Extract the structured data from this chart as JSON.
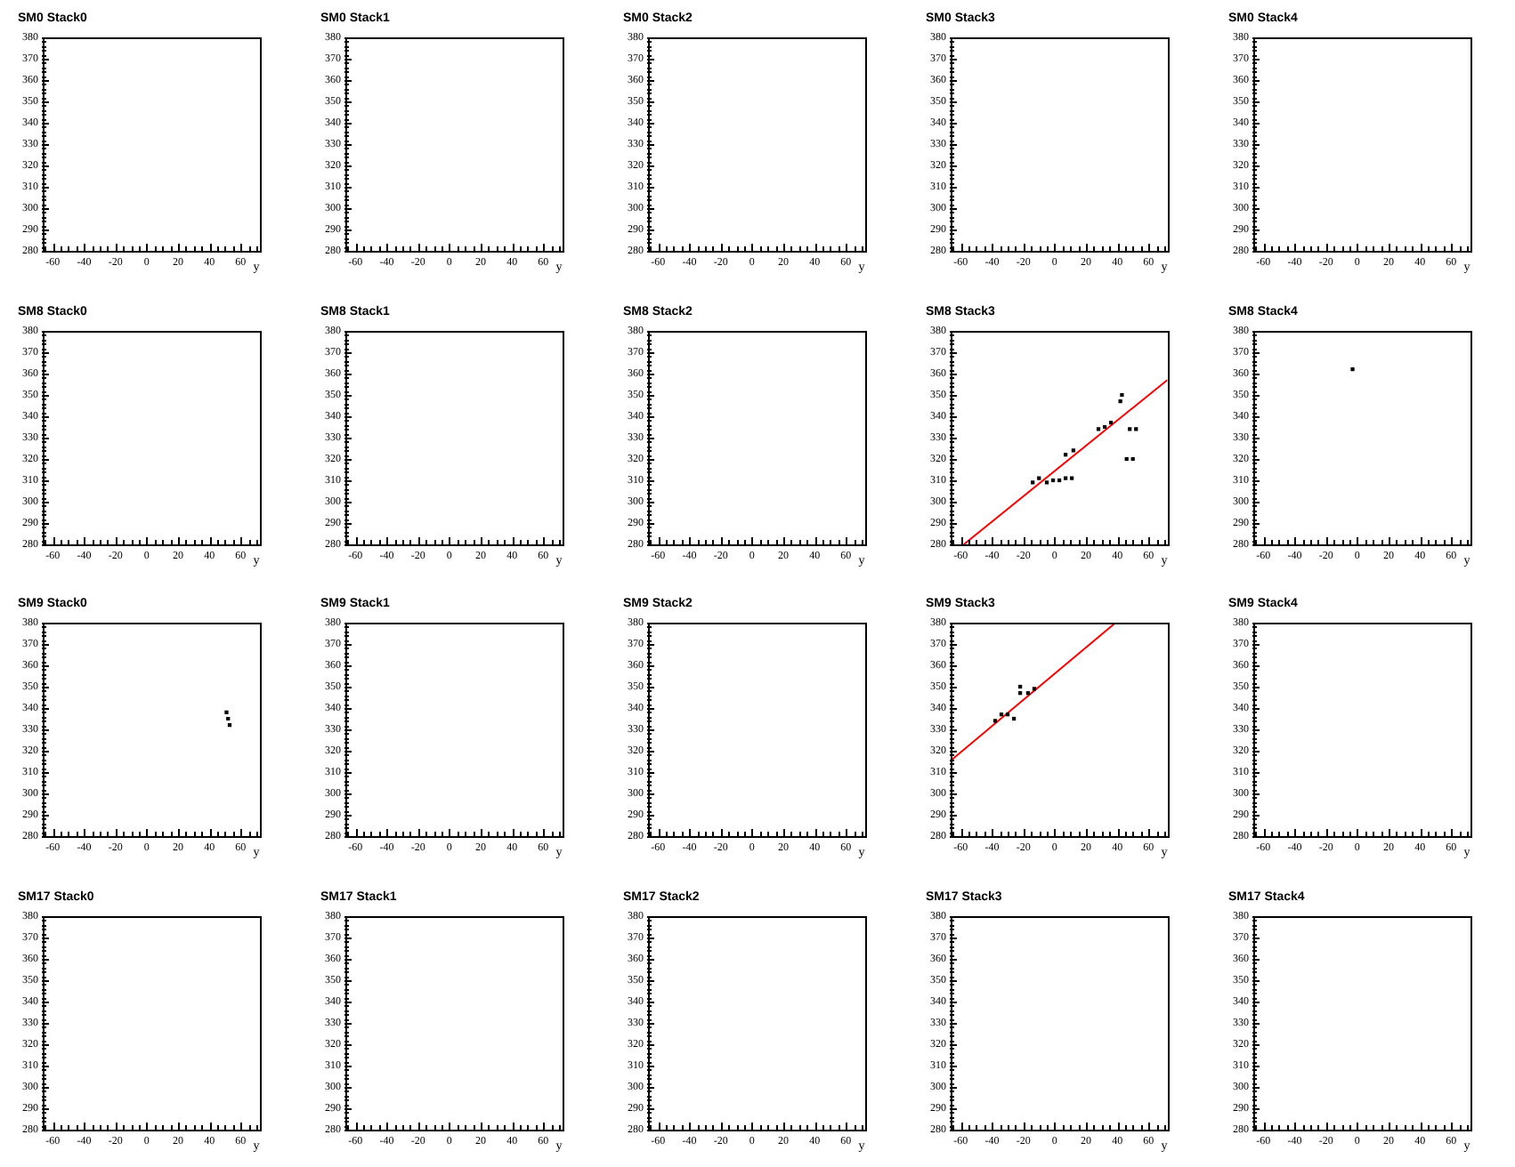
{
  "chart_data": [
    {
      "type": "scatter",
      "title": "SM0 Stack0",
      "xlabel": "y",
      "xlim": [
        -67,
        72
      ],
      "ylim": [
        280,
        380
      ],
      "xticks": [
        -60,
        -40,
        -20,
        0,
        20,
        40,
        60
      ],
      "yticks": [
        280,
        290,
        300,
        310,
        320,
        330,
        340,
        350,
        360,
        370,
        380
      ]
    },
    {
      "type": "scatter",
      "title": "SM0 Stack1",
      "xlabel": "y",
      "xlim": [
        -67,
        72
      ],
      "ylim": [
        280,
        380
      ],
      "xticks": [
        -60,
        -40,
        -20,
        0,
        20,
        40,
        60
      ],
      "yticks": [
        280,
        290,
        300,
        310,
        320,
        330,
        340,
        350,
        360,
        370,
        380
      ]
    },
    {
      "type": "scatter",
      "title": "SM0 Stack2",
      "xlabel": "y",
      "xlim": [
        -67,
        72
      ],
      "ylim": [
        280,
        380
      ],
      "xticks": [
        -60,
        -40,
        -20,
        0,
        20,
        40,
        60
      ],
      "yticks": [
        280,
        290,
        300,
        310,
        320,
        330,
        340,
        350,
        360,
        370,
        380
      ]
    },
    {
      "type": "scatter",
      "title": "SM0 Stack3",
      "xlabel": "y",
      "xlim": [
        -67,
        72
      ],
      "ylim": [
        280,
        380
      ],
      "xticks": [
        -60,
        -40,
        -20,
        0,
        20,
        40,
        60
      ],
      "yticks": [
        280,
        290,
        300,
        310,
        320,
        330,
        340,
        350,
        360,
        370,
        380
      ]
    },
    {
      "type": "scatter",
      "title": "SM0 Stack4",
      "xlabel": "y",
      "xlim": [
        -67,
        72
      ],
      "ylim": [
        280,
        380
      ],
      "xticks": [
        -60,
        -40,
        -20,
        0,
        20,
        40,
        60
      ],
      "yticks": [
        280,
        290,
        300,
        310,
        320,
        330,
        340,
        350,
        360,
        370,
        380
      ]
    },
    {
      "type": "scatter",
      "title": "SM8 Stack0",
      "xlabel": "y",
      "xlim": [
        -67,
        72
      ],
      "ylim": [
        280,
        380
      ],
      "xticks": [
        -60,
        -40,
        -20,
        0,
        20,
        40,
        60
      ],
      "yticks": [
        280,
        290,
        300,
        310,
        320,
        330,
        340,
        350,
        360,
        370,
        380
      ]
    },
    {
      "type": "scatter",
      "title": "SM8 Stack1",
      "xlabel": "y",
      "xlim": [
        -67,
        72
      ],
      "ylim": [
        280,
        380
      ],
      "xticks": [
        -60,
        -40,
        -20,
        0,
        20,
        40,
        60
      ],
      "yticks": [
        280,
        290,
        300,
        310,
        320,
        330,
        340,
        350,
        360,
        370,
        380
      ]
    },
    {
      "type": "scatter",
      "title": "SM8 Stack2",
      "xlabel": "y",
      "xlim": [
        -67,
        72
      ],
      "ylim": [
        280,
        380
      ],
      "xticks": [
        -60,
        -40,
        -20,
        0,
        20,
        40,
        60
      ],
      "yticks": [
        280,
        290,
        300,
        310,
        320,
        330,
        340,
        350,
        360,
        370,
        380
      ]
    },
    {
      "type": "scatter",
      "title": "SM8 Stack3",
      "xlabel": "y",
      "xlim": [
        -67,
        72
      ],
      "ylim": [
        280,
        380
      ],
      "xticks": [
        -60,
        -40,
        -20,
        0,
        20,
        40,
        60
      ],
      "yticks": [
        280,
        290,
        300,
        310,
        320,
        330,
        340,
        350,
        360,
        370,
        380
      ],
      "marker": "square",
      "series": [
        {
          "color": "#000000",
          "x": [
            -14,
            -10,
            -5,
            -1,
            3,
            7,
            11,
            7,
            12,
            28,
            32,
            36,
            42,
            43,
            48,
            52,
            46,
            50
          ],
          "values": [
            309,
            311,
            309,
            310,
            310,
            311,
            311,
            322,
            324,
            334,
            335,
            337,
            347,
            350,
            334,
            334,
            320,
            320
          ]
        },
        {
          "type": "line",
          "marker": "none",
          "color": "#ff0000",
          "x": [
            -58,
            72
          ],
          "values": [
            280,
            357
          ]
        }
      ]
    },
    {
      "type": "scatter",
      "title": "SM8 Stack4",
      "xlabel": "y",
      "xlim": [
        -67,
        72
      ],
      "ylim": [
        280,
        380
      ],
      "xticks": [
        -60,
        -40,
        -20,
        0,
        20,
        40,
        60
      ],
      "yticks": [
        280,
        290,
        300,
        310,
        320,
        330,
        340,
        350,
        360,
        370,
        380
      ],
      "marker": "square",
      "series": [
        {
          "color": "#000000",
          "x": [
            -3
          ],
          "values": [
            362
          ]
        }
      ]
    },
    {
      "type": "scatter",
      "title": "SM9 Stack0",
      "xlabel": "y",
      "xlim": [
        -67,
        72
      ],
      "ylim": [
        280,
        380
      ],
      "xticks": [
        -60,
        -40,
        -20,
        0,
        20,
        40,
        60
      ],
      "yticks": [
        280,
        290,
        300,
        310,
        320,
        330,
        340,
        350,
        360,
        370,
        380
      ],
      "marker": "square",
      "series": [
        {
          "color": "#000000",
          "x": [
            51,
            52,
            53
          ],
          "values": [
            338,
            335,
            332
          ]
        }
      ]
    },
    {
      "type": "scatter",
      "title": "SM9 Stack1",
      "xlabel": "y",
      "xlim": [
        -67,
        72
      ],
      "ylim": [
        280,
        380
      ],
      "xticks": [
        -60,
        -40,
        -20,
        0,
        20,
        40,
        60
      ],
      "yticks": [
        280,
        290,
        300,
        310,
        320,
        330,
        340,
        350,
        360,
        370,
        380
      ]
    },
    {
      "type": "scatter",
      "title": "SM9 Stack2",
      "xlabel": "y",
      "xlim": [
        -67,
        72
      ],
      "ylim": [
        280,
        380
      ],
      "xticks": [
        -60,
        -40,
        -20,
        0,
        20,
        40,
        60
      ],
      "yticks": [
        280,
        290,
        300,
        310,
        320,
        330,
        340,
        350,
        360,
        370,
        380
      ]
    },
    {
      "type": "scatter",
      "title": "SM9 Stack3",
      "xlabel": "y",
      "xlim": [
        -67,
        72
      ],
      "ylim": [
        280,
        380
      ],
      "xticks": [
        -60,
        -40,
        -20,
        0,
        20,
        40,
        60
      ],
      "yticks": [
        280,
        290,
        300,
        310,
        320,
        330,
        340,
        350,
        360,
        370,
        380
      ],
      "marker": "square",
      "series": [
        {
          "color": "#000000",
          "x": [
            -38,
            -34,
            -30,
            -26,
            -22,
            -22,
            -17,
            -13
          ],
          "values": [
            334,
            337,
            337,
            335,
            350,
            347,
            347,
            349
          ]
        },
        {
          "type": "line",
          "marker": "none",
          "color": "#ff0000",
          "x": [
            -67,
            39
          ],
          "values": [
            315,
            380
          ]
        }
      ]
    },
    {
      "type": "scatter",
      "title": "SM9 Stack4",
      "xlabel": "y",
      "xlim": [
        -67,
        72
      ],
      "ylim": [
        280,
        380
      ],
      "xticks": [
        -60,
        -40,
        -20,
        0,
        20,
        40,
        60
      ],
      "yticks": [
        280,
        290,
        300,
        310,
        320,
        330,
        340,
        350,
        360,
        370,
        380
      ]
    },
    {
      "type": "scatter",
      "title": "SM17 Stack0",
      "xlabel": "y",
      "xlim": [
        -67,
        72
      ],
      "ylim": [
        280,
        380
      ],
      "xticks": [
        -60,
        -40,
        -20,
        0,
        20,
        40,
        60
      ],
      "yticks": [
        280,
        290,
        300,
        310,
        320,
        330,
        340,
        350,
        360,
        370,
        380
      ]
    },
    {
      "type": "scatter",
      "title": "SM17 Stack1",
      "xlabel": "y",
      "xlim": [
        -67,
        72
      ],
      "ylim": [
        280,
        380
      ],
      "xticks": [
        -60,
        -40,
        -20,
        0,
        20,
        40,
        60
      ],
      "yticks": [
        280,
        290,
        300,
        310,
        320,
        330,
        340,
        350,
        360,
        370,
        380
      ]
    },
    {
      "type": "scatter",
      "title": "SM17 Stack2",
      "xlabel": "y",
      "xlim": [
        -67,
        72
      ],
      "ylim": [
        280,
        380
      ],
      "xticks": [
        -60,
        -40,
        -20,
        0,
        20,
        40,
        60
      ],
      "yticks": [
        280,
        290,
        300,
        310,
        320,
        330,
        340,
        350,
        360,
        370,
        380
      ]
    },
    {
      "type": "scatter",
      "title": "SM17 Stack3",
      "xlabel": "y",
      "xlim": [
        -67,
        72
      ],
      "ylim": [
        280,
        380
      ],
      "xticks": [
        -60,
        -40,
        -20,
        0,
        20,
        40,
        60
      ],
      "yticks": [
        280,
        290,
        300,
        310,
        320,
        330,
        340,
        350,
        360,
        370,
        380
      ]
    },
    {
      "type": "scatter",
      "title": "SM17 Stack4",
      "xlabel": "y",
      "xlim": [
        -67,
        72
      ],
      "ylim": [
        280,
        380
      ],
      "xticks": [
        -60,
        -40,
        -20,
        0,
        20,
        40,
        60
      ],
      "yticks": [
        280,
        290,
        300,
        310,
        320,
        330,
        340,
        350,
        360,
        370,
        380
      ]
    }
  ]
}
